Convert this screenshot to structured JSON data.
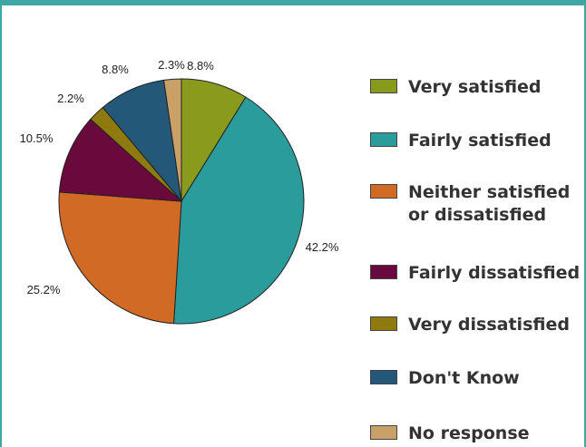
{
  "chart_data": {
    "type": "pie",
    "title": "",
    "slices": [
      {
        "label": "Very satisfied",
        "value": 8.8,
        "value_label": "8.8%",
        "color": "#8a9a1c"
      },
      {
        "label": "Fairly satisfied",
        "value": 42.2,
        "value_label": "42.2%",
        "color": "#2a9c9c"
      },
      {
        "label": "Neither satisfied or dissatisfied",
        "value": 25.2,
        "value_label": "25.2%",
        "color": "#d16a24"
      },
      {
        "label": "Fairly dissatisfied",
        "value": 10.5,
        "value_label": "10.5%",
        "color": "#6a0a3c"
      },
      {
        "label": "Very dissatisfied",
        "value": 2.2,
        "value_label": "2.2%",
        "color": "#8f7a10"
      },
      {
        "label": "Don't Know",
        "value": 8.8,
        "value_label": "8.8%",
        "color": "#235878"
      },
      {
        "label": "No response",
        "value": 2.3,
        "value_label": "2.3%",
        "color": "#c8a068"
      }
    ],
    "legend_position": "right",
    "start_angle": "12 o'clock",
    "direction": "clockwise"
  }
}
